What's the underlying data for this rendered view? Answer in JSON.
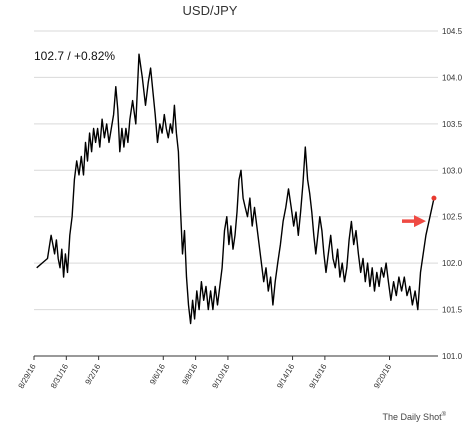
{
  "chart_data": {
    "type": "line",
    "title": "USD/JPY",
    "annotation": "102.7  /  +0.82%",
    "source": "The Daily Shot",
    "source_mark": "®",
    "ylim": [
      101.0,
      104.5
    ],
    "yticks": [
      "101.0",
      "101.5",
      "102.0",
      "102.5",
      "103.0",
      "103.5",
      "104.0",
      "104.5"
    ],
    "x_start": "8/29/16",
    "x_end": "9/22/16",
    "xticks": [
      "8/29/16",
      "8/31/16",
      "9/2/16",
      "9/6/16",
      "9/8/16",
      "9/10/16",
      "9/14/16",
      "9/16/16",
      "9/20/16"
    ],
    "grid": "horizontal",
    "line_color": "#000000",
    "marker_color": "#e8392f",
    "arrow_color": "#ef4a43",
    "last_value": 102.7,
    "series": [
      {
        "points": [
          [
            "8/29/16",
            101.95
          ],
          [
            "8/29/16",
            102.0
          ],
          [
            "8/29/16",
            102.05
          ],
          [
            "8/30/16",
            102.3
          ],
          [
            "8/30/16",
            102.2
          ],
          [
            "8/30/16",
            102.1
          ],
          [
            "8/30/16",
            102.25
          ],
          [
            "8/30/16",
            102.05
          ],
          [
            "8/30/16",
            101.95
          ],
          [
            "8/30/16",
            102.15
          ],
          [
            "8/30/16",
            101.85
          ],
          [
            "8/30/16",
            102.1
          ],
          [
            "8/31/16",
            101.9
          ],
          [
            "8/31/16",
            102.3
          ],
          [
            "8/31/16",
            102.5
          ],
          [
            "8/31/16",
            102.9
          ],
          [
            "8/31/16",
            103.1
          ],
          [
            "8/31/16",
            102.95
          ],
          [
            "8/31/16",
            103.15
          ],
          [
            "9/1/16",
            102.95
          ],
          [
            "9/1/16",
            103.3
          ],
          [
            "9/1/16",
            103.1
          ],
          [
            "9/1/16",
            103.4
          ],
          [
            "9/1/16",
            103.2
          ],
          [
            "9/1/16",
            103.45
          ],
          [
            "9/1/16",
            103.3
          ],
          [
            "9/1/16",
            103.45
          ],
          [
            "9/2/16",
            103.25
          ],
          [
            "9/2/16",
            103.55
          ],
          [
            "9/2/16",
            103.35
          ],
          [
            "9/2/16",
            103.5
          ],
          [
            "9/2/16",
            103.3
          ],
          [
            "9/2/16",
            103.45
          ],
          [
            "9/2/16",
            103.6
          ],
          [
            "9/3/16",
            103.9
          ],
          [
            "9/3/16",
            103.65
          ],
          [
            "9/3/16",
            103.2
          ],
          [
            "9/3/16",
            103.45
          ],
          [
            "9/3/16",
            103.25
          ],
          [
            "9/3/16",
            103.45
          ],
          [
            "9/3/16",
            103.3
          ],
          [
            "9/3/16",
            103.55
          ],
          [
            "9/4/16",
            103.75
          ],
          [
            "9/4/16",
            103.5
          ],
          [
            "9/4/16",
            104.25
          ],
          [
            "9/4/16",
            104.0
          ],
          [
            "9/4/16",
            103.7
          ],
          [
            "9/5/16",
            103.95
          ],
          [
            "9/5/16",
            104.1
          ],
          [
            "9/5/16",
            103.85
          ],
          [
            "9/5/16",
            103.6
          ],
          [
            "9/5/16",
            103.3
          ],
          [
            "9/5/16",
            103.5
          ],
          [
            "9/5/16",
            103.4
          ],
          [
            "9/6/16",
            103.6
          ],
          [
            "9/6/16",
            103.45
          ],
          [
            "9/6/16",
            103.35
          ],
          [
            "9/6/16",
            103.5
          ],
          [
            "9/6/16",
            103.4
          ],
          [
            "9/6/16",
            103.7
          ],
          [
            "9/6/16",
            103.4
          ],
          [
            "9/6/16",
            103.2
          ],
          [
            "9/7/16",
            102.6
          ],
          [
            "9/7/16",
            102.1
          ],
          [
            "9/7/16",
            102.35
          ],
          [
            "9/7/16",
            101.85
          ],
          [
            "9/7/16",
            101.55
          ],
          [
            "9/7/16",
            101.35
          ],
          [
            "9/7/16",
            101.6
          ],
          [
            "9/7/16",
            101.4
          ],
          [
            "9/8/16",
            101.7
          ],
          [
            "9/8/16",
            101.5
          ],
          [
            "9/8/16",
            101.8
          ],
          [
            "9/8/16",
            101.6
          ],
          [
            "9/8/16",
            101.75
          ],
          [
            "9/8/16",
            101.5
          ],
          [
            "9/8/16",
            101.7
          ],
          [
            "9/9/16",
            101.5
          ],
          [
            "9/9/16",
            101.75
          ],
          [
            "9/9/16",
            101.55
          ],
          [
            "9/9/16",
            101.75
          ],
          [
            "9/9/16",
            101.95
          ],
          [
            "9/9/16",
            102.35
          ],
          [
            "9/9/16",
            102.5
          ],
          [
            "9/10/16",
            102.2
          ],
          [
            "9/10/16",
            102.4
          ],
          [
            "9/10/16",
            102.15
          ],
          [
            "9/10/16",
            102.3
          ],
          [
            "9/10/16",
            102.55
          ],
          [
            "9/10/16",
            102.9
          ],
          [
            "9/10/16",
            103.0
          ],
          [
            "9/10/16",
            102.7
          ],
          [
            "9/11/16",
            102.6
          ],
          [
            "9/11/16",
            102.5
          ],
          [
            "9/11/16",
            102.7
          ],
          [
            "9/11/16",
            102.4
          ],
          [
            "9/11/16",
            102.6
          ],
          [
            "9/11/16",
            102.4
          ],
          [
            "9/11/16",
            102.2
          ],
          [
            "9/12/16",
            102.0
          ],
          [
            "9/12/16",
            101.8
          ],
          [
            "9/12/16",
            101.95
          ],
          [
            "9/12/16",
            101.7
          ],
          [
            "9/12/16",
            101.85
          ],
          [
            "9/12/16",
            101.55
          ],
          [
            "9/12/16",
            101.8
          ],
          [
            "9/13/16",
            102.0
          ],
          [
            "9/13/16",
            102.2
          ],
          [
            "9/13/16",
            102.45
          ],
          [
            "9/13/16",
            102.6
          ],
          [
            "9/13/16",
            102.8
          ],
          [
            "9/13/16",
            102.6
          ],
          [
            "9/14/16",
            102.4
          ],
          [
            "9/14/16",
            102.55
          ],
          [
            "9/14/16",
            102.3
          ],
          [
            "9/14/16",
            102.55
          ],
          [
            "9/14/16",
            102.85
          ],
          [
            "9/14/16",
            103.25
          ],
          [
            "9/14/16",
            102.9
          ],
          [
            "9/15/16",
            102.75
          ],
          [
            "9/15/16",
            102.55
          ],
          [
            "9/15/16",
            102.3
          ],
          [
            "9/15/16",
            102.1
          ],
          [
            "9/15/16",
            102.3
          ],
          [
            "9/15/16",
            102.5
          ],
          [
            "9/15/16",
            102.35
          ],
          [
            "9/15/16",
            102.1
          ],
          [
            "9/16/16",
            101.9
          ],
          [
            "9/16/16",
            102.1
          ],
          [
            "9/16/16",
            102.3
          ],
          [
            "9/16/16",
            102.05
          ],
          [
            "9/16/16",
            101.95
          ],
          [
            "9/16/16",
            102.15
          ],
          [
            "9/16/16",
            101.85
          ],
          [
            "9/17/16",
            102.0
          ],
          [
            "9/17/16",
            101.8
          ],
          [
            "9/17/16",
            101.95
          ],
          [
            "9/17/16",
            102.25
          ],
          [
            "9/17/16",
            102.45
          ],
          [
            "9/17/16",
            102.2
          ],
          [
            "9/17/16",
            102.35
          ],
          [
            "9/18/16",
            102.1
          ],
          [
            "9/18/16",
            101.9
          ],
          [
            "9/18/16",
            102.05
          ],
          [
            "9/18/16",
            101.8
          ],
          [
            "9/18/16",
            102.0
          ],
          [
            "9/18/16",
            101.75
          ],
          [
            "9/18/16",
            101.95
          ],
          [
            "9/19/16",
            101.7
          ],
          [
            "9/19/16",
            101.9
          ],
          [
            "9/19/16",
            101.75
          ],
          [
            "9/19/16",
            101.95
          ],
          [
            "9/19/16",
            101.85
          ],
          [
            "9/19/16",
            102.0
          ],
          [
            "9/19/16",
            101.8
          ],
          [
            "9/20/16",
            101.6
          ],
          [
            "9/20/16",
            101.8
          ],
          [
            "9/20/16",
            101.65
          ],
          [
            "9/20/16",
            101.85
          ],
          [
            "9/20/16",
            101.7
          ],
          [
            "9/20/16",
            101.85
          ],
          [
            "9/21/16",
            101.65
          ],
          [
            "9/21/16",
            101.75
          ],
          [
            "9/21/16",
            101.55
          ],
          [
            "9/21/16",
            101.7
          ],
          [
            "9/21/16",
            101.5
          ],
          [
            "9/21/16",
            101.9
          ],
          [
            "9/22/16",
            102.3
          ],
          [
            "9/22/16",
            102.7
          ]
        ]
      }
    ]
  }
}
